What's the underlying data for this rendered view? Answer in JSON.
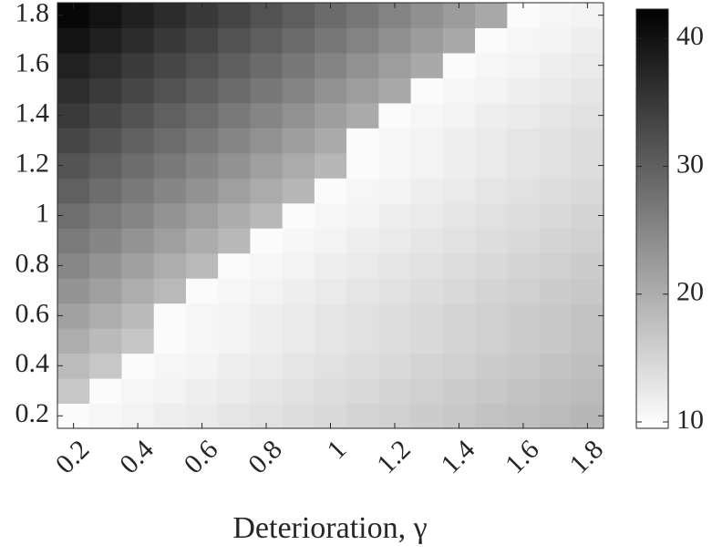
{
  "chart_data": {
    "type": "heatmap",
    "xlabel": "Deterioration, γ",
    "x": [
      0.2,
      0.3,
      0.4,
      0.5,
      0.6,
      0.7,
      0.8,
      0.9,
      1,
      1.1,
      1.2,
      1.3,
      1.4,
      1.5,
      1.6,
      1.7,
      1.8
    ],
    "y": [
      0.2,
      0.3,
      0.4,
      0.5,
      0.6,
      0.7,
      0.8,
      0.9,
      1,
      1.1,
      1.2,
      1.3,
      1.4,
      1.5,
      1.6,
      1.7,
      1.8
    ],
    "z": [
      [
        10,
        10.6,
        11.1,
        11.7,
        12.2,
        12.8,
        13.3,
        13.9,
        14.4,
        15,
        15.5,
        16.1,
        16.6,
        17.2,
        17.7,
        18.3,
        18.8
      ],
      [
        16.7,
        10,
        10.6,
        11.1,
        11.7,
        12.2,
        12.8,
        13.3,
        13.9,
        14.4,
        15,
        15.5,
        16.1,
        16.6,
        17.2,
        17.7,
        18.3
      ],
      [
        18.3,
        16.7,
        10,
        10.6,
        11.1,
        11.7,
        12.2,
        12.8,
        13.3,
        13.9,
        14.4,
        15,
        15.5,
        16.1,
        16.6,
        17.2,
        17.7
      ],
      [
        20,
        18.4,
        16.8,
        10,
        10.6,
        11.1,
        11.7,
        12.2,
        12.8,
        13.3,
        13.9,
        14.4,
        15,
        15.5,
        16.1,
        16.6,
        17.2
      ],
      [
        21.6,
        20,
        18.4,
        10,
        10.6,
        11.1,
        11.7,
        12.2,
        12.8,
        13.3,
        13.9,
        14.4,
        15,
        15.5,
        16.1,
        16.6,
        17.2
      ],
      [
        23.3,
        21.7,
        20.1,
        18.5,
        10,
        10.6,
        11.1,
        11.7,
        12.2,
        12.8,
        13.3,
        13.9,
        14.4,
        15,
        15.5,
        16.1,
        16.6
      ],
      [
        24.9,
        23.3,
        21.7,
        20.1,
        18.5,
        10,
        10.6,
        11.1,
        11.7,
        12.2,
        12.8,
        13.3,
        13.9,
        14.4,
        15,
        15.5,
        16.1
      ],
      [
        26.6,
        25,
        23.4,
        21.8,
        20.2,
        18.6,
        10,
        10.6,
        11.1,
        11.7,
        12.2,
        12.8,
        13.3,
        13.9,
        14.4,
        15,
        15.5
      ],
      [
        28.2,
        26.6,
        25,
        23.4,
        21.8,
        20.2,
        18.6,
        10,
        10.6,
        11.1,
        11.7,
        12.2,
        12.8,
        13.3,
        13.9,
        14.4,
        15
      ],
      [
        29.9,
        28.3,
        26.7,
        25.1,
        23.5,
        21.9,
        20.3,
        18.7,
        10,
        10.6,
        11.1,
        11.7,
        12.2,
        12.8,
        13.3,
        13.9,
        14.4
      ],
      [
        31.5,
        29.9,
        28.3,
        26.7,
        25.1,
        23.5,
        21.9,
        20.3,
        18.7,
        10,
        10.6,
        11.1,
        11.7,
        12.2,
        12.8,
        13.3,
        13.9
      ],
      [
        33.2,
        31.6,
        30,
        28.4,
        26.8,
        25.2,
        23.6,
        22,
        20.4,
        10,
        10.6,
        11.1,
        11.7,
        12.2,
        12.8,
        13.3,
        13.9
      ],
      [
        34.8,
        33.2,
        31.6,
        30,
        28.4,
        26.8,
        25.2,
        23.6,
        22,
        20.4,
        10,
        10.6,
        11.1,
        11.7,
        12.2,
        12.8,
        13.3
      ],
      [
        36.5,
        34.9,
        33.3,
        31.7,
        30.1,
        28.5,
        26.9,
        25.3,
        23.7,
        22.1,
        20.5,
        10,
        10.6,
        11.1,
        11.7,
        12.2,
        12.8
      ],
      [
        38.1,
        36.5,
        34.9,
        33.3,
        31.7,
        30.1,
        28.5,
        26.9,
        25.3,
        23.7,
        22.1,
        20.5,
        10,
        10.6,
        11.1,
        11.7,
        12.2
      ],
      [
        39.8,
        38.2,
        36.6,
        35,
        33.4,
        31.8,
        30.2,
        28.6,
        27,
        25.4,
        23.8,
        22.2,
        20.6,
        10,
        10.6,
        11.1,
        11.7
      ],
      [
        41.4,
        39.8,
        38.2,
        36.6,
        35,
        33.4,
        31.8,
        30.2,
        28.6,
        27,
        25.4,
        23.8,
        22.2,
        20.6,
        10,
        10.6,
        11.1
      ]
    ],
    "xlim": [
      0.15,
      1.85
    ],
    "ylim": [
      0.15,
      1.85
    ],
    "xticks": [
      0.2,
      0.4,
      0.6,
      0.8,
      1,
      1.2,
      1.4,
      1.6,
      1.8
    ],
    "yticks": [
      0.2,
      0.4,
      0.6,
      0.8,
      1,
      1.2,
      1.4,
      1.6,
      1.8
    ],
    "colormap": [
      "#ffffff",
      "#000000"
    ],
    "clim": [
      9.5,
      42.3
    ],
    "cticks": [
      10,
      20,
      30,
      40
    ]
  }
}
